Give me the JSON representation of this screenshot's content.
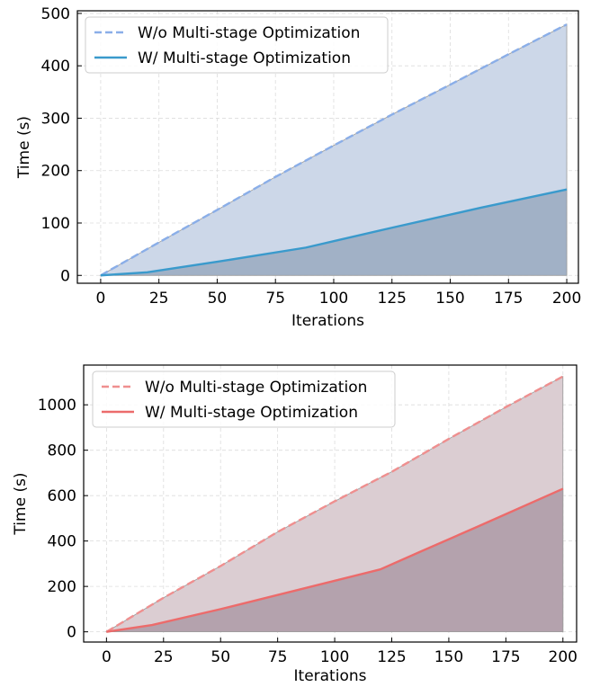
{
  "chart_data": [
    {
      "type": "area",
      "xlabel": "Iterations",
      "ylabel": "Time (s)",
      "xlim": [
        -10,
        205
      ],
      "ylim": [
        -15,
        505
      ],
      "xticks": [
        0,
        25,
        50,
        75,
        100,
        125,
        150,
        175,
        200
      ],
      "yticks": [
        0,
        100,
        200,
        300,
        400,
        500
      ],
      "xtick_labels": [
        "0",
        "25",
        "50",
        "75",
        "100",
        "125",
        "150",
        "175",
        "200"
      ],
      "ytick_labels": [
        "0",
        "100",
        "200",
        "300",
        "400",
        "500"
      ],
      "grid": true,
      "legend_position": "top-left",
      "series": [
        {
          "name": "W/o Multi-stage Optimization",
          "style": "dashed",
          "color": "#8aaee8",
          "fill_color": "#ccd7e8",
          "x": [
            0,
            25,
            50,
            75,
            100,
            125,
            150,
            175,
            200
          ],
          "y": [
            0,
            63,
            125,
            188,
            248,
            307,
            364,
            422,
            479
          ]
        },
        {
          "name": "W/ Multi-stage Optimization",
          "style": "solid",
          "color": "#3a9acc",
          "fill_color": "#a1b1c6",
          "x": [
            0,
            20,
            50,
            88,
            125,
            163,
            200
          ],
          "y": [
            0,
            6,
            26,
            53,
            91,
            129,
            164
          ]
        }
      ]
    },
    {
      "type": "area",
      "xlabel": "Iterations",
      "ylabel": "Time (s)",
      "xlim": [
        -10,
        206
      ],
      "ylim": [
        -45,
        1175
      ],
      "xticks": [
        0,
        25,
        50,
        75,
        100,
        125,
        150,
        175,
        200
      ],
      "yticks": [
        0,
        200,
        400,
        600,
        800,
        1000
      ],
      "xtick_labels": [
        "0",
        "25",
        "50",
        "75",
        "100",
        "125",
        "150",
        "175",
        "200"
      ],
      "ytick_labels": [
        "0",
        "200",
        "400",
        "600",
        "800",
        "1000"
      ],
      "grid": true,
      "legend_position": "top-left",
      "series": [
        {
          "name": "W/o Multi-stage Optimization",
          "style": "dashed",
          "color": "#ef8f8f",
          "fill_color": "#dbcdd2",
          "x": [
            0,
            25,
            50,
            75,
            100,
            125,
            150,
            175,
            200
          ],
          "y": [
            0,
            150,
            290,
            440,
            575,
            705,
            850,
            990,
            1125
          ]
        },
        {
          "name": "W/ Multi-stage Optimization",
          "style": "solid",
          "color": "#ec6b6b",
          "fill_color": "#b4a2ad",
          "x": [
            0,
            20,
            50,
            88,
            120,
            138,
            163,
            200
          ],
          "y": [
            0,
            30,
            100,
            195,
            275,
            355,
            465,
            630
          ]
        }
      ]
    }
  ]
}
